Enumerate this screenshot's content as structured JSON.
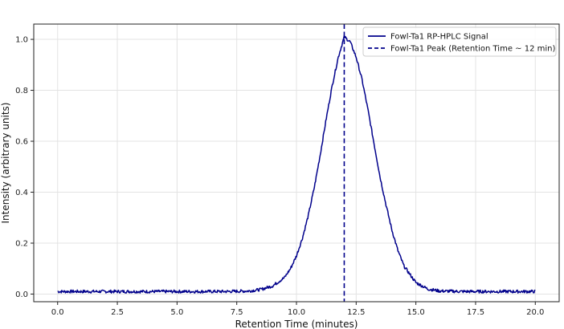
{
  "chart_data": {
    "type": "line",
    "title": "",
    "xlabel": "Retention Time (minutes)",
    "ylabel": "Intensity (arbitrary units)",
    "xlim": [
      -1,
      21
    ],
    "ylim": [
      -0.03,
      1.06
    ],
    "xticks": [
      0.0,
      2.5,
      5.0,
      7.5,
      10.0,
      12.5,
      15.0,
      17.5,
      20.0
    ],
    "xtick_labels": [
      "0.0",
      "2.5",
      "5.0",
      "7.5",
      "10.0",
      "12.5",
      "15.0",
      "17.5",
      "20.0"
    ],
    "yticks": [
      0.0,
      0.2,
      0.4,
      0.6,
      0.8,
      1.0
    ],
    "ytick_labels": [
      "0.0",
      "0.2",
      "0.4",
      "0.6",
      "0.8",
      "1.0"
    ],
    "grid": true,
    "legend_position": "top-right",
    "colors": {
      "signal": "#00008b",
      "peak_line": "#00008b"
    },
    "series": [
      {
        "name": "Fowl-Ta1 RP-HPLC Signal",
        "style": "solid",
        "x": [
          0.0,
          1.0,
          2.0,
          3.0,
          4.0,
          5.0,
          6.0,
          7.0,
          8.0,
          8.5,
          9.0,
          9.5,
          9.75,
          10.0,
          10.25,
          10.5,
          10.75,
          11.0,
          11.25,
          11.5,
          11.75,
          12.0,
          12.25,
          12.5,
          12.75,
          13.0,
          13.25,
          13.5,
          13.75,
          14.0,
          14.25,
          14.5,
          15.0,
          15.5,
          16.0,
          17.0,
          18.0,
          19.0,
          20.0
        ],
        "y": [
          0.01,
          0.01,
          0.01,
          0.01,
          0.01,
          0.01,
          0.01,
          0.01,
          0.012,
          0.018,
          0.032,
          0.065,
          0.1,
          0.15,
          0.22,
          0.31,
          0.42,
          0.55,
          0.69,
          0.82,
          0.93,
          1.01,
          0.99,
          0.93,
          0.84,
          0.72,
          0.59,
          0.46,
          0.35,
          0.25,
          0.17,
          0.11,
          0.045,
          0.02,
          0.012,
          0.01,
          0.01,
          0.01,
          0.01
        ]
      },
      {
        "name": "Fowl-Ta1 Peak (Retention Time ~ 12 min)",
        "style": "dashed",
        "vline_x": 12.0
      }
    ]
  }
}
